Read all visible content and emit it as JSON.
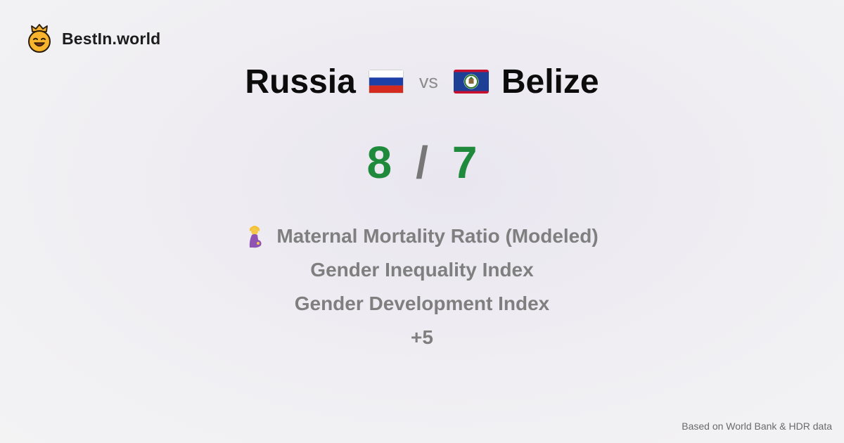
{
  "brand": {
    "name": "BestIn.world",
    "logo_icon": "crowned-smiley-icon"
  },
  "comparison": {
    "left_country": "Russia",
    "left_flag_icon": "russia-flag-icon",
    "vs_label": "vs",
    "right_country": "Belize",
    "right_flag_icon": "belize-flag-icon"
  },
  "score": {
    "left": "8",
    "separator": "/",
    "right": "7",
    "score_color": "#1f8a3b"
  },
  "metrics": [
    {
      "label": "Maternal Mortality Ratio (Modeled)",
      "icon": "pregnant-woman-icon"
    },
    {
      "label": "Gender Inequality Index"
    },
    {
      "label": "Gender Development Index"
    },
    {
      "label": "+5"
    }
  ],
  "footer": {
    "source": "Based on World Bank & HDR data"
  }
}
